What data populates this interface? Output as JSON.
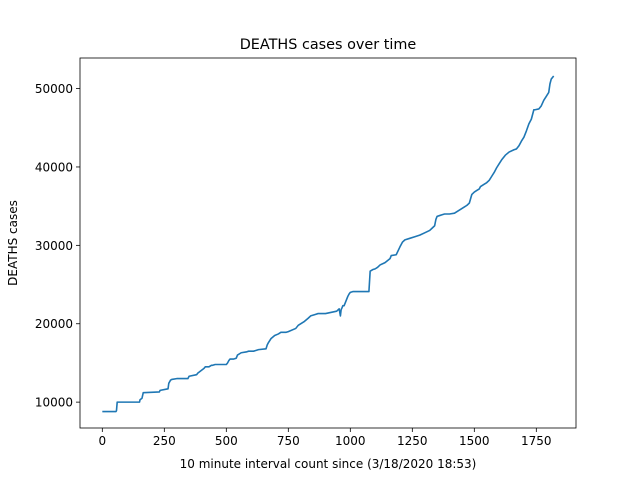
{
  "chart_data": {
    "type": "line",
    "title": "DEATHS cases over time",
    "xlabel": "10 minute interval count since (3/18/2020 18:53)",
    "ylabel": "DEATHS cases",
    "xlim": [
      -90,
      1910
    ],
    "ylim": [
      6700,
      53900
    ],
    "xticks": [
      0,
      250,
      500,
      750,
      1000,
      1250,
      1500,
      1750
    ],
    "xtick_labels": [
      "0",
      "250",
      "500",
      "750",
      "1000",
      "1250",
      "1500",
      "1750"
    ],
    "yticks": [
      10000,
      20000,
      30000,
      40000,
      50000
    ],
    "ytick_labels": [
      "10000",
      "20000",
      "30000",
      "40000",
      "50000"
    ],
    "grid": false,
    "legend": "none",
    "series": [
      {
        "color": "#1f77b4",
        "x": [
          0,
          55,
          57,
          60,
          150,
          152,
          160,
          165,
          230,
          233,
          265,
          268,
          275,
          280,
          300,
          345,
          350,
          380,
          385,
          410,
          415,
          430,
          440,
          445,
          455,
          500,
          505,
          510,
          515,
          530,
          540,
          545,
          560,
          580,
          590,
          600,
          610,
          630,
          660,
          665,
          670,
          680,
          695,
          710,
          720,
          740,
          750,
          780,
          790,
          815,
          830,
          840,
          850,
          860,
          870,
          880,
          885,
          900,
          945,
          955,
          960,
          963,
          966,
          970,
          975,
          985,
          990,
          995,
          1000,
          1010,
          1020,
          1075,
          1080,
          1090,
          1100,
          1110,
          1120,
          1140,
          1160,
          1165,
          1185,
          1200,
          1210,
          1220,
          1240,
          1260,
          1280,
          1300,
          1320,
          1330,
          1340,
          1345,
          1350,
          1360,
          1370,
          1380,
          1400,
          1420,
          1440,
          1460,
          1470,
          1480,
          1490,
          1500,
          1510,
          1520,
          1525,
          1540,
          1550,
          1560,
          1570,
          1580,
          1590,
          1600,
          1610,
          1625,
          1640,
          1660,
          1670,
          1680,
          1690,
          1700,
          1710,
          1720,
          1730,
          1740,
          1745,
          1760,
          1770,
          1780,
          1790,
          1800,
          1805,
          1810,
          1820
        ],
        "y": [
          8800,
          8800,
          8900,
          10000,
          10000,
          10300,
          10500,
          11200,
          11300,
          11500,
          11700,
          12400,
          12800,
          12900,
          13000,
          13000,
          13300,
          13500,
          13700,
          14300,
          14500,
          14500,
          14700,
          14700,
          14800,
          14800,
          15000,
          15300,
          15500,
          15500,
          15600,
          16000,
          16300,
          16400,
          16500,
          16500,
          16500,
          16700,
          16800,
          17300,
          17600,
          18100,
          18500,
          18700,
          18900,
          18900,
          19000,
          19400,
          19800,
          20300,
          20700,
          21000,
          21100,
          21200,
          21300,
          21300,
          21300,
          21300,
          21600,
          21900,
          21000,
          21800,
          22000,
          22300,
          22300,
          23100,
          23500,
          23800,
          24000,
          24100,
          24100,
          24100,
          26700,
          26900,
          27000,
          27200,
          27500,
          27800,
          28300,
          28700,
          28800,
          29800,
          30400,
          30700,
          30900,
          31100,
          31300,
          31600,
          31900,
          32200,
          32500,
          33300,
          33700,
          33800,
          33900,
          34000,
          34000,
          34100,
          34500,
          34900,
          35100,
          35400,
          36500,
          36800,
          37000,
          37200,
          37500,
          37800,
          38000,
          38300,
          38800,
          39300,
          39900,
          40400,
          40900,
          41500,
          41900,
          42200,
          42300,
          42700,
          43300,
          43800,
          44600,
          45500,
          46100,
          47300,
          47300,
          47400,
          47800,
          48500,
          49000,
          49500,
          50600,
          51200,
          51600
        ]
      }
    ]
  }
}
